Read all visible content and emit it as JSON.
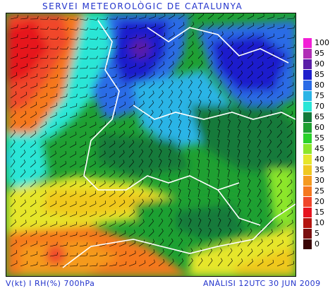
{
  "header": {
    "title": "SERVEI METEOROLÒGIC DE CATALUNYA"
  },
  "footer": {
    "left": "V(kt) I RH(%) 700hPa",
    "right": "ANÀLISI 12UTC 30 JUN 2009"
  },
  "legend": {
    "items": [
      {
        "label": "100",
        "color": "#f21fd6"
      },
      {
        "label": "95",
        "color": "#b02fb6"
      },
      {
        "label": "90",
        "color": "#5a1fa8"
      },
      {
        "label": "85",
        "color": "#1f1fcc"
      },
      {
        "label": "80",
        "color": "#2a6ce6"
      },
      {
        "label": "75",
        "color": "#2ab4e6"
      },
      {
        "label": "70",
        "color": "#2ae6d6"
      },
      {
        "label": "65",
        "color": "#137a3a"
      },
      {
        "label": "60",
        "color": "#1fa032"
      },
      {
        "label": "55",
        "color": "#2ad22a"
      },
      {
        "label": "45",
        "color": "#8ce62a"
      },
      {
        "label": "40",
        "color": "#e6e62a"
      },
      {
        "label": "35",
        "color": "#f0c81f"
      },
      {
        "label": "30",
        "color": "#f59a1f"
      },
      {
        "label": "25",
        "color": "#f5781f"
      },
      {
        "label": "20",
        "color": "#f0462a"
      },
      {
        "label": "15",
        "color": "#e6141f"
      },
      {
        "label": "10",
        "color": "#b4140f"
      },
      {
        "label": "5",
        "color": "#7a0f0f"
      },
      {
        "label": "0",
        "color": "#3a0505"
      }
    ]
  }
}
